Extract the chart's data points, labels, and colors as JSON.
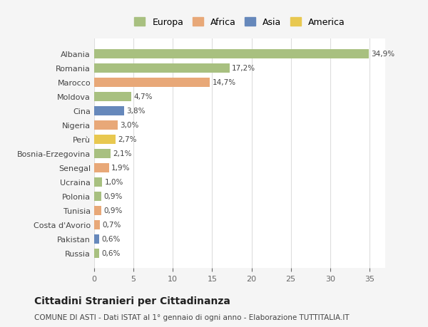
{
  "countries": [
    "Russia",
    "Pakistan",
    "Costa d'Avorio",
    "Tunisia",
    "Polonia",
    "Ucraina",
    "Senegal",
    "Bosnia-Erzegovina",
    "Perù",
    "Nigeria",
    "Cina",
    "Moldova",
    "Marocco",
    "Romania",
    "Albania"
  ],
  "values": [
    0.6,
    0.6,
    0.7,
    0.9,
    0.9,
    1.0,
    1.9,
    2.1,
    2.7,
    3.0,
    3.8,
    4.7,
    14.7,
    17.2,
    34.9
  ],
  "labels": [
    "0,6%",
    "0,6%",
    "0,7%",
    "0,9%",
    "0,9%",
    "1,0%",
    "1,9%",
    "2,1%",
    "2,7%",
    "3,0%",
    "3,8%",
    "4,7%",
    "14,7%",
    "17,2%",
    "34,9%"
  ],
  "colors": [
    "#a8c080",
    "#6688bb",
    "#e8a878",
    "#e8a878",
    "#a8c080",
    "#a8c080",
    "#e8a878",
    "#a8c080",
    "#e8c850",
    "#e8a878",
    "#6688bb",
    "#a8c080",
    "#e8a878",
    "#a8c080",
    "#a8c080"
  ],
  "continent_colors": {
    "Europa": "#a8c080",
    "Africa": "#e8a878",
    "Asia": "#6688bb",
    "America": "#e8c850"
  },
  "legend_keys": [
    "Europa",
    "Africa",
    "Asia",
    "America"
  ],
  "xlim": [
    0,
    37
  ],
  "xticks": [
    0,
    5,
    10,
    15,
    20,
    25,
    30,
    35
  ],
  "title": "Cittadini Stranieri per Cittadinanza",
  "subtitle": "COMUNE DI ASTI - Dati ISTAT al 1° gennaio di ogni anno - Elaborazione TUTTITALIA.IT",
  "bg_color": "#f5f5f5",
  "plot_bg_color": "#ffffff",
  "grid_color": "#dddddd"
}
